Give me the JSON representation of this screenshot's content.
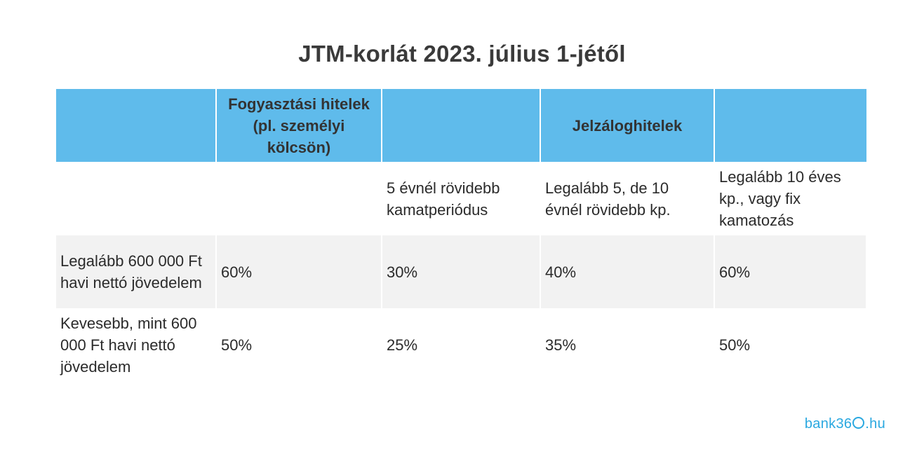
{
  "title": "JTM-korlát 2023. július 1-jétől",
  "table": {
    "header": [
      "",
      "Fogyasztási hitelek (pl. személyi kölcsön)",
      "",
      "Jelzáloghitelek",
      ""
    ],
    "subheader": [
      "",
      "",
      "5 évnél rövidebb kamatperiódus",
      "Legalább 5, de 10 évnél rövidebb kp.",
      "Legalább 10 éves kp., vagy fix kamatozás"
    ],
    "rows": [
      [
        "Legalább 600 000 Ft havi nettó jövedelem",
        "60%",
        "30%",
        "40%",
        "60%"
      ],
      [
        "Kevesebb, mint 600 000 Ft havi nettó jövedelem",
        "50%",
        "25%",
        "35%",
        "50%"
      ]
    ]
  },
  "logo": {
    "text_before": "bank36",
    "text_after": ".hu"
  },
  "colors": {
    "header_bg": "#5fbbeb",
    "shaded_row_bg": "#f2f2f2",
    "logo": "#2aa8e0"
  }
}
